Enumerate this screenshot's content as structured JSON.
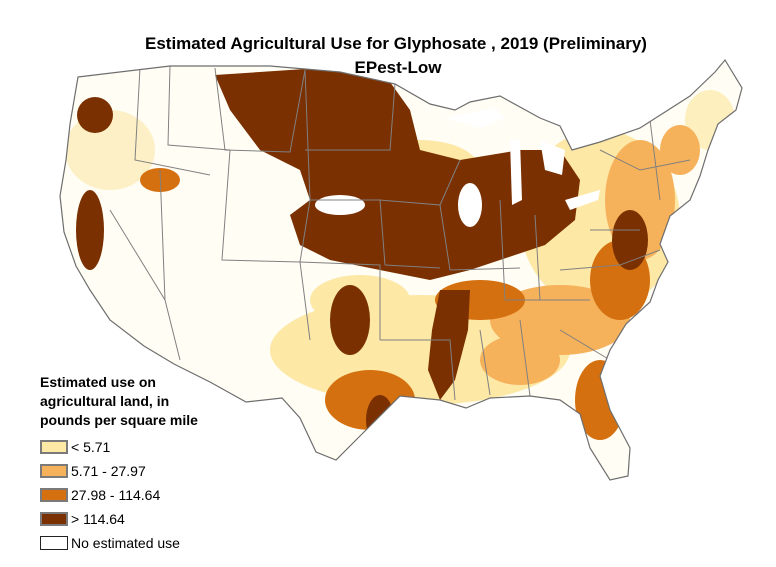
{
  "title": "Estimated Agricultural Use for Glyphosate , 2019 (Preliminary)",
  "subtitle": "EPest-Low",
  "legend": {
    "title_lines": [
      "Estimated use on",
      "agricultural land, in",
      "pounds per square mile"
    ],
    "items": [
      {
        "label": "< 5.71",
        "color": "#fde8a6"
      },
      {
        "label": "5.71 - 27.97",
        "color": "#f6b15b"
      },
      {
        "label": "27.98 - 114.64",
        "color": "#d4700f"
      },
      {
        "label": "> 114.64",
        "color": "#7a3000"
      },
      {
        "label": "No estimated use",
        "color": "#ffffff"
      }
    ]
  }
}
